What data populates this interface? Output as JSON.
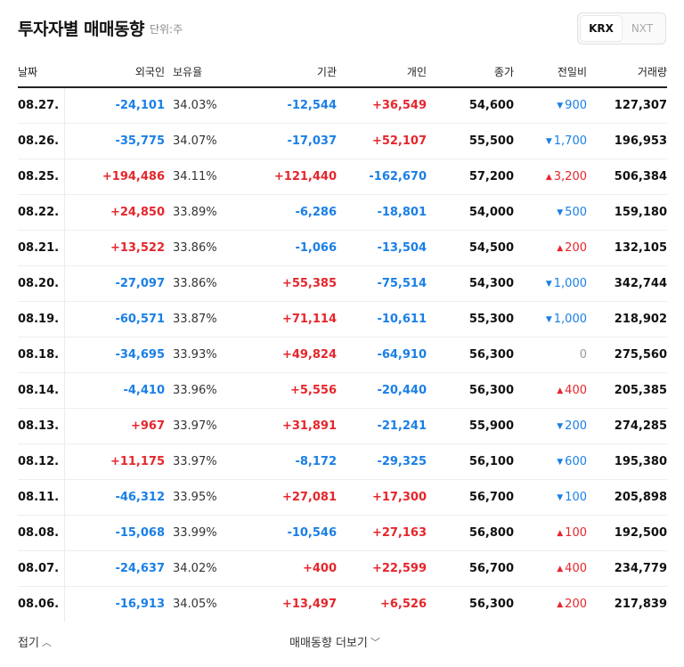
{
  "header": {
    "title": "투자자별 매매동향",
    "unit": "단위:주"
  },
  "market_toggle": {
    "active": "KRX",
    "inactive": "NXT"
  },
  "columns": {
    "date": "날짜",
    "foreign": "외국인",
    "ownership": "보유율",
    "institution": "기관",
    "individual": "개인",
    "close": "종가",
    "change": "전일비",
    "volume": "거래량"
  },
  "rows": [
    {
      "date": "08.27.",
      "foreign": "-24,101",
      "ownership": "34.03%",
      "institution": "-12,544",
      "individual": "+36,549",
      "close": "54,600",
      "change": "900",
      "dir": "down",
      "volume": "127,307"
    },
    {
      "date": "08.26.",
      "foreign": "-35,775",
      "ownership": "34.07%",
      "institution": "-17,037",
      "individual": "+52,107",
      "close": "55,500",
      "change": "1,700",
      "dir": "down",
      "volume": "196,953"
    },
    {
      "date": "08.25.",
      "foreign": "+194,486",
      "ownership": "34.11%",
      "institution": "+121,440",
      "individual": "-162,670",
      "close": "57,200",
      "change": "3,200",
      "dir": "up",
      "volume": "506,384"
    },
    {
      "date": "08.22.",
      "foreign": "+24,850",
      "ownership": "33.89%",
      "institution": "-6,286",
      "individual": "-18,801",
      "close": "54,000",
      "change": "500",
      "dir": "down",
      "volume": "159,180"
    },
    {
      "date": "08.21.",
      "foreign": "+13,522",
      "ownership": "33.86%",
      "institution": "-1,066",
      "individual": "-13,504",
      "close": "54,500",
      "change": "200",
      "dir": "up",
      "volume": "132,105"
    },
    {
      "date": "08.20.",
      "foreign": "-27,097",
      "ownership": "33.86%",
      "institution": "+55,385",
      "individual": "-75,514",
      "close": "54,300",
      "change": "1,000",
      "dir": "down",
      "volume": "342,744"
    },
    {
      "date": "08.19.",
      "foreign": "-60,571",
      "ownership": "33.87%",
      "institution": "+71,114",
      "individual": "-10,611",
      "close": "55,300",
      "change": "1,000",
      "dir": "down",
      "volume": "218,902"
    },
    {
      "date": "08.18.",
      "foreign": "-34,695",
      "ownership": "33.93%",
      "institution": "+49,824",
      "individual": "-64,910",
      "close": "56,300",
      "change": "0",
      "dir": "flat",
      "volume": "275,560"
    },
    {
      "date": "08.14.",
      "foreign": "-4,410",
      "ownership": "33.96%",
      "institution": "+5,556",
      "individual": "-20,440",
      "close": "56,300",
      "change": "400",
      "dir": "up",
      "volume": "205,385"
    },
    {
      "date": "08.13.",
      "foreign": "+967",
      "ownership": "33.97%",
      "institution": "+31,891",
      "individual": "-21,241",
      "close": "55,900",
      "change": "200",
      "dir": "down",
      "volume": "274,285"
    },
    {
      "date": "08.12.",
      "foreign": "+11,175",
      "ownership": "33.97%",
      "institution": "-8,172",
      "individual": "-29,325",
      "close": "56,100",
      "change": "600",
      "dir": "down",
      "volume": "195,380"
    },
    {
      "date": "08.11.",
      "foreign": "-46,312",
      "ownership": "33.95%",
      "institution": "+27,081",
      "individual": "+17,300",
      "close": "56,700",
      "change": "100",
      "dir": "down",
      "volume": "205,898"
    },
    {
      "date": "08.08.",
      "foreign": "-15,068",
      "ownership": "33.99%",
      "institution": "-10,546",
      "individual": "+27,163",
      "close": "56,800",
      "change": "100",
      "dir": "up",
      "volume": "192,500"
    },
    {
      "date": "08.07.",
      "foreign": "-24,637",
      "ownership": "34.02%",
      "institution": "+400",
      "individual": "+22,599",
      "close": "56,700",
      "change": "400",
      "dir": "up",
      "volume": "234,779"
    },
    {
      "date": "08.06.",
      "foreign": "-16,913",
      "ownership": "34.05%",
      "institution": "+13,497",
      "individual": "+6,526",
      "close": "56,300",
      "change": "200",
      "dir": "up",
      "volume": "217,839"
    }
  ],
  "footer": {
    "fold_label": "접기",
    "more_label": "매매동향 더보기"
  },
  "colors": {
    "up": "#e5262c",
    "down": "#1a7fe6",
    "flat": "#999999"
  }
}
